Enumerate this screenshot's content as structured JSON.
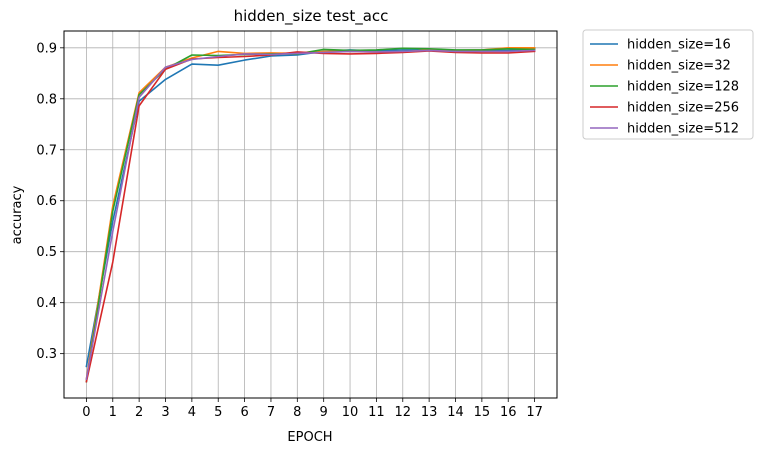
{
  "chart_data": {
    "type": "line",
    "title": "hidden_size test_acc",
    "xlabel": "EPOCH",
    "ylabel": "accuracy",
    "x": [
      0,
      1,
      2,
      3,
      4,
      5,
      6,
      7,
      8,
      9,
      10,
      11,
      12,
      13,
      14,
      15,
      16,
      17
    ],
    "xlim": [
      -0.85,
      17.85
    ],
    "ylim": [
      0.213,
      0.933
    ],
    "xticks": [
      "0",
      "1",
      "2",
      "3",
      "4",
      "5",
      "6",
      "7",
      "8",
      "9",
      "10",
      "11",
      "12",
      "13",
      "14",
      "15",
      "16",
      "17"
    ],
    "yticks": [
      0.3,
      0.4,
      0.5,
      0.6,
      0.7,
      0.8,
      0.9
    ],
    "ytick_labels": [
      "0.3",
      "0.4",
      "0.5",
      "0.6",
      "0.7",
      "0.8",
      "0.9"
    ],
    "grid": true,
    "legend_placement": "outside-top-right",
    "series": [
      {
        "name": "hidden_size=16",
        "color": "#1f77b4",
        "values": [
          0.275,
          0.56,
          0.795,
          0.838,
          0.868,
          0.866,
          0.876,
          0.884,
          0.886,
          0.893,
          0.896,
          0.894,
          0.896,
          0.896,
          0.894,
          0.895,
          0.895,
          0.898
        ]
      },
      {
        "name": "hidden_size=32",
        "color": "#ff7f0e",
        "values": [
          0.25,
          0.59,
          0.812,
          0.862,
          0.88,
          0.893,
          0.889,
          0.89,
          0.889,
          0.893,
          0.893,
          0.892,
          0.892,
          0.896,
          0.895,
          0.896,
          0.9,
          0.9
        ]
      },
      {
        "name": "hidden_size=128",
        "color": "#2ca02c",
        "values": [
          0.245,
          0.58,
          0.808,
          0.858,
          0.886,
          0.885,
          0.887,
          0.888,
          0.888,
          0.897,
          0.895,
          0.896,
          0.899,
          0.898,
          0.896,
          0.896,
          0.898,
          0.897
        ]
      },
      {
        "name": "hidden_size=256",
        "color": "#d62728",
        "values": [
          0.245,
          0.48,
          0.786,
          0.858,
          0.878,
          0.881,
          0.883,
          0.886,
          0.892,
          0.889,
          0.888,
          0.889,
          0.891,
          0.894,
          0.891,
          0.89,
          0.89,
          0.893
        ]
      },
      {
        "name": "hidden_size=512",
        "color": "#9467bd",
        "values": [
          0.25,
          0.54,
          0.803,
          0.862,
          0.877,
          0.883,
          0.888,
          0.887,
          0.889,
          0.891,
          0.893,
          0.892,
          0.893,
          0.895,
          0.893,
          0.893,
          0.893,
          0.895
        ]
      }
    ]
  }
}
